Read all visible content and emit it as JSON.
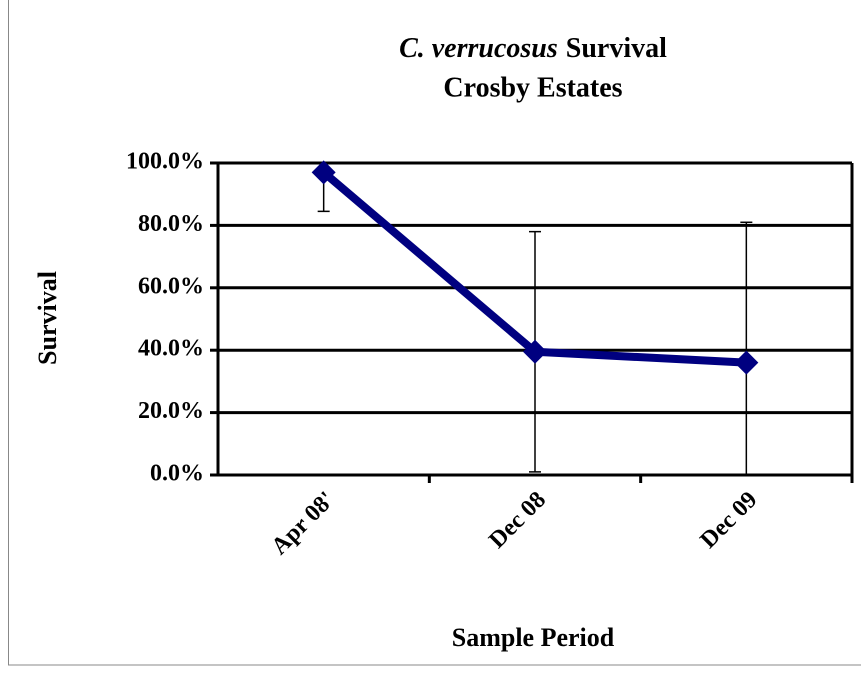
{
  "chart_data": {
    "type": "line",
    "title": [
      "C. verrucosus",
      "Survival"
    ],
    "subtitle": "Crosby Estates",
    "x_label": "Sample Period",
    "y_label": "Survival",
    "categories": [
      "Apr 08'",
      "Dec 08",
      "Dec 09"
    ],
    "series": [
      {
        "name": "Survival",
        "color": "#000080",
        "values": [
          97,
          39.5,
          36
        ],
        "errors": [
          12.5,
          38.5,
          45
        ]
      }
    ],
    "ylim": [
      0,
      100
    ],
    "yticks": [
      {
        "value": 0,
        "label": "0.0%"
      },
      {
        "value": 20,
        "label": "20.0%"
      },
      {
        "value": 40,
        "label": "40.0%"
      },
      {
        "value": 60,
        "label": "60.0%"
      },
      {
        "value": 80,
        "label": "80.0%"
      },
      {
        "value": 100,
        "label": "100.0%"
      }
    ],
    "grid": true
  }
}
